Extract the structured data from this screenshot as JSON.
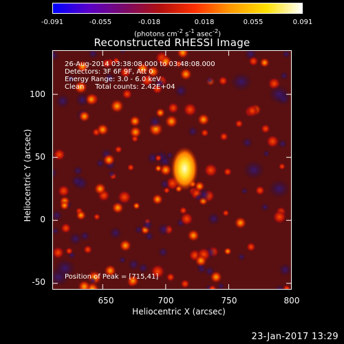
{
  "colorbar": {
    "ticks": [
      "-0.091",
      "-0.055",
      "-0.018",
      "0.018",
      "0.055",
      "0.091"
    ],
    "unit_html": "(photons cm<sup>-2</sup> s<sup>-1</sup> asec<sup>-2</sup>)",
    "colors": [
      "#0000ff",
      "#5a00c8",
      "#7a0a6a",
      "#b01010",
      "#ff3000",
      "#ff9a00",
      "#ffe000",
      "#ffffff"
    ]
  },
  "chart_data": {
    "type": "heatmap",
    "title": "Reconstructed RHESSI Image",
    "xlabel": "Heliocentric X (arcsec)",
    "ylabel": "Heliocentric Y (arcsec)",
    "xlim": [
      610,
      800
    ],
    "ylim": [
      -55,
      135
    ],
    "xticks": [
      "650",
      "700",
      "750",
      "800"
    ],
    "yticks": [
      "100",
      "50",
      "0",
      "-50"
    ],
    "xtick_values": [
      650,
      700,
      750,
      800
    ],
    "ytick_values": [
      100,
      50,
      0,
      -50
    ],
    "peak": [
      715,
      41
    ],
    "value_range": [
      -0.091,
      0.091
    ],
    "annotations": [
      "26-Aug-2014 03:38:08.000 to 03:48:08.000",
      "Detectors: 3F 6F 9F, Att 0",
      "Energy Range: 3.0 - 6.0 keV",
      "Clean     Total counts: 2.42E+04"
    ],
    "peak_label": "Position of Peak = [715,41]"
  },
  "footer": "23-Jan-2017 13:29"
}
